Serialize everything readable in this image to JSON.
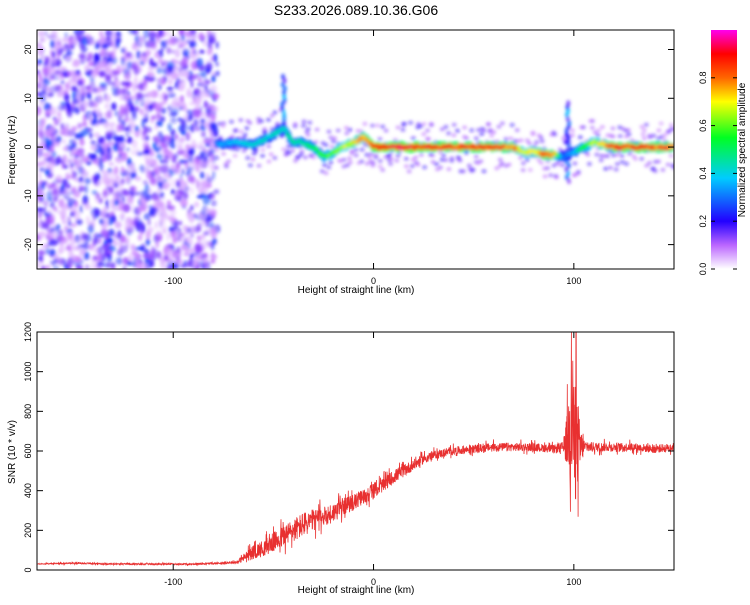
{
  "title": "S233.2026.089.10.36.G06",
  "chart_data": [
    {
      "type": "heatmap",
      "xlabel": "Height of straight line (km)",
      "ylabel": "Frequency (Hz)",
      "xlim": [
        -168,
        150
      ],
      "ylim": [
        -25,
        24
      ],
      "xticks": [
        -100,
        0,
        100
      ],
      "xtick_labels": [
        "-100",
        "0",
        "100"
      ],
      "yticks": [
        -20,
        -10,
        0,
        10,
        20
      ],
      "ytick_labels": [
        "-20",
        "-10",
        "0",
        "10",
        "20"
      ],
      "noise_region_x": [
        -168,
        -78
      ],
      "ridge": {
        "x": [
          -78,
          -70,
          -60,
          -55,
          -50,
          -45,
          -40,
          -36,
          -30,
          -25,
          -20,
          -15,
          -10,
          -5,
          0,
          20,
          40,
          60,
          70,
          75,
          80,
          85,
          90,
          95,
          100,
          105,
          110,
          120,
          135,
          150
        ],
        "y": [
          0.5,
          1,
          0.5,
          1.5,
          2.5,
          4,
          1,
          1,
          0,
          -2,
          -1,
          0,
          1,
          2,
          0,
          0,
          0,
          0,
          0,
          -1,
          -1,
          -1.5,
          -1.5,
          -2,
          -1,
          0,
          1,
          0,
          0,
          0
        ],
        "amplitude": [
          0.35,
          0.4,
          0.45,
          0.45,
          0.45,
          0.45,
          0.5,
          0.5,
          0.55,
          0.6,
          0.65,
          0.7,
          0.75,
          0.8,
          0.95,
          0.95,
          0.9,
          0.9,
          0.85,
          0.7,
          0.75,
          0.9,
          0.85,
          0.3,
          0.4,
          0.6,
          0.7,
          0.9,
          0.9,
          0.85
        ]
      },
      "spikes": [
        {
          "x": -45,
          "ymin": 4,
          "ymax": 15
        },
        {
          "x": 97,
          "ymin": -7,
          "ymax": 9
        }
      ],
      "colorbar": {
        "label": "Normalized spectral amplitude",
        "range": [
          0,
          1
        ],
        "ticks": [
          0.0,
          0.2,
          0.4,
          0.6,
          0.8
        ],
        "tick_labels": [
          "0.0",
          "0.2",
          "0.4",
          "0.6",
          "0.8"
        ],
        "colors": [
          "#ffffff",
          "#8800ff",
          "#0000ff",
          "#00ffff",
          "#00ff00",
          "#ffff00",
          "#ff8800",
          "#ff0000",
          "#ff00ff"
        ]
      }
    },
    {
      "type": "line",
      "xlabel": "Height of straight line (km)",
      "ylabel": "SNR (10 * v/v)",
      "xlim": [
        -168,
        150
      ],
      "ylim": [
        0,
        1200
      ],
      "xticks": [
        -100,
        0,
        100
      ],
      "xtick_labels": [
        "-100",
        "0",
        "100"
      ],
      "yticks": [
        0,
        200,
        400,
        600,
        800,
        1000,
        1200
      ],
      "ytick_labels": [
        "0",
        "200",
        "400",
        "600",
        "800",
        "1000",
        "1200"
      ],
      "series": [
        {
          "name": "SNR",
          "color": "#e83030",
          "x": [
            -168,
            -150,
            -130,
            -110,
            -90,
            -75,
            -68,
            -65,
            -60,
            -55,
            -50,
            -45,
            -40,
            -35,
            -30,
            -25,
            -20,
            -15,
            -10,
            -5,
            0,
            5,
            10,
            15,
            20,
            25,
            30,
            40,
            50,
            60,
            70,
            80,
            90,
            95,
            98,
            100,
            102,
            105,
            110,
            120,
            130,
            140,
            150
          ],
          "y": [
            30,
            35,
            30,
            30,
            30,
            35,
            40,
            60,
            90,
            110,
            140,
            170,
            200,
            230,
            250,
            270,
            290,
            320,
            340,
            370,
            400,
            430,
            470,
            500,
            530,
            560,
            580,
            600,
            610,
            620,
            620,
            620,
            610,
            620,
            700,
            650,
            600,
            620,
            620,
            620,
            620,
            610,
            620
          ],
          "noise": [
            3,
            5,
            5,
            5,
            5,
            6,
            10,
            30,
            50,
            60,
            70,
            80,
            85,
            90,
            80,
            70,
            70,
            60,
            60,
            55,
            55,
            50,
            50,
            45,
            40,
            35,
            30,
            30,
            30,
            30,
            30,
            30,
            30,
            40,
            350,
            500,
            300,
            40,
            35,
            30,
            30,
            30,
            30
          ]
        }
      ]
    }
  ]
}
